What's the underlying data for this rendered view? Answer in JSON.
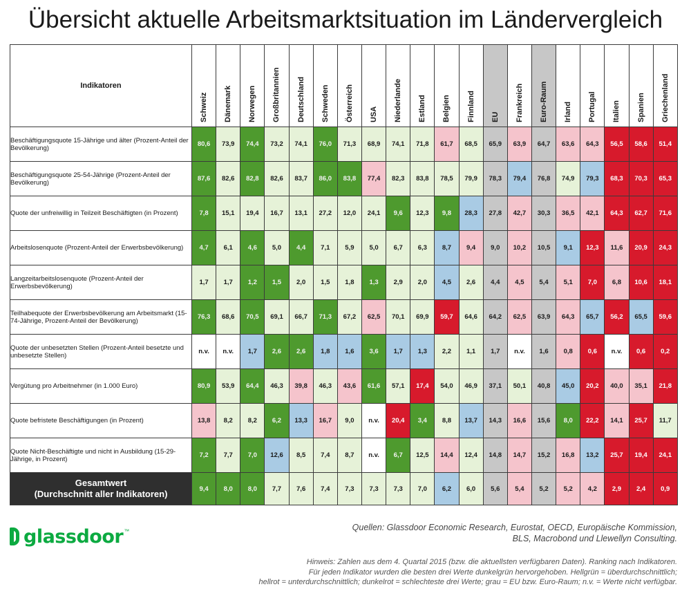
{
  "title": "Übersicht aktuelle Arbeitsmarktsituation im Ländervergleich",
  "header_label": "Indikatoren",
  "countries": [
    "Schweiz",
    "Dänemark",
    "Norwegen",
    "Großbritannien",
    "Deutschland",
    "Schweden",
    "Österreich",
    "USA",
    "Niederlande",
    "Estland",
    "Belgien",
    "Finnland",
    "EU",
    "Frankreich",
    "Euro-Raum",
    "Irland",
    "Portugal",
    "Italien",
    "Spanien",
    "Griechenland"
  ],
  "grey_columns": [
    12,
    14
  ],
  "legend_colors": {
    "dg": "#4e9a2e",
    "lg": "#e6f2d8",
    "lr": "#f5c4cc",
    "dr": "#d71a2c",
    "gr": "#c7c7c7",
    "bl": "#a9cbe4",
    "wh": "#ffffff"
  },
  "rows": [
    {
      "label": "Beschäftigungsquote 15-Jährige und älter (Prozent-Anteil der Bevölkerung)",
      "values": [
        "80,6",
        "73,9",
        "74,4",
        "73,2",
        "74,1",
        "76,0",
        "71,3",
        "68,9",
        "74,1",
        "71,8",
        "61,7",
        "68,5",
        "65,9",
        "63,9",
        "64,7",
        "63,6",
        "64,3",
        "56,5",
        "58,6",
        "51,4"
      ],
      "colors": [
        "dg",
        "lg",
        "dg",
        "lg",
        "lg",
        "dg",
        "lg",
        "lg",
        "lg",
        "lg",
        "lr",
        "lg",
        "gr",
        "lr",
        "gr",
        "lr",
        "lr",
        "dr",
        "dr",
        "dr"
      ]
    },
    {
      "label": "Beschäftigungsquote 25-54-Jährige (Prozent-Anteil der Bevölkerung)",
      "values": [
        "87,6",
        "82,6",
        "82,8",
        "82,6",
        "83,7",
        "86,0",
        "83,8",
        "77,4",
        "82,3",
        "83,8",
        "78,5",
        "79,9",
        "78,3",
        "79,4",
        "76,8",
        "74,9",
        "79,3",
        "68,3",
        "70,3",
        "65,3"
      ],
      "colors": [
        "dg",
        "lg",
        "dg",
        "lg",
        "lg",
        "dg",
        "dg",
        "lr",
        "lg",
        "lg",
        "lg",
        "lg",
        "gr",
        "bl",
        "gr",
        "lg",
        "bl",
        "dr",
        "dr",
        "dr"
      ]
    },
    {
      "label": "Quote der unfreiwillig in Teilzeit Beschäftigten (in Prozent)",
      "values": [
        "7,8",
        "15,1",
        "19,4",
        "16,7",
        "13,1",
        "27,2",
        "12,0",
        "24,1",
        "9,6",
        "12,3",
        "9,8",
        "28,3",
        "27,8",
        "42,7",
        "30,3",
        "36,5",
        "42,1",
        "64,3",
        "62,7",
        "71,6"
      ],
      "colors": [
        "dg",
        "lg",
        "lg",
        "lg",
        "lg",
        "lg",
        "lg",
        "lg",
        "dg",
        "lg",
        "dg",
        "bl",
        "gr",
        "lr",
        "gr",
        "lr",
        "lr",
        "dr",
        "dr",
        "dr"
      ]
    },
    {
      "label": "Arbeitslosenquote (Prozent-Anteil der Erwerbsbevölkerung)",
      "values": [
        "4,7",
        "6,1",
        "4,6",
        "5,0",
        "4,4",
        "7,1",
        "5,9",
        "5,0",
        "6,7",
        "6,3",
        "8,7",
        "9,4",
        "9,0",
        "10,2",
        "10,5",
        "9,1",
        "12,3",
        "11,6",
        "20,9",
        "24,3"
      ],
      "colors": [
        "dg",
        "lg",
        "dg",
        "lg",
        "dg",
        "lg",
        "lg",
        "lg",
        "lg",
        "lg",
        "bl",
        "lr",
        "gr",
        "lr",
        "gr",
        "bl",
        "dr",
        "lr",
        "dr",
        "dr"
      ]
    },
    {
      "label": "Langzeitarbeitslosenquote (Prozent-Anteil der Erwerbsbevölkerung)",
      "values": [
        "1,7",
        "1,7",
        "1,2",
        "1,5",
        "2,0",
        "1,5",
        "1,8",
        "1,3",
        "2,9",
        "2,0",
        "4,5",
        "2,6",
        "4,4",
        "4,5",
        "5,4",
        "5,1",
        "7,0",
        "6,8",
        "10,6",
        "18,1"
      ],
      "colors": [
        "lg",
        "lg",
        "dg",
        "dg",
        "lg",
        "lg",
        "lg",
        "dg",
        "lg",
        "lg",
        "bl",
        "lg",
        "gr",
        "lr",
        "gr",
        "lr",
        "dr",
        "lr",
        "dr",
        "dr"
      ]
    },
    {
      "label": "Teilhabequote der Erwerbsbevölkerung am Arbeitsmarkt (15-74-Jährige, Prozent-Anteil der Bevölkerung)",
      "values": [
        "76,3",
        "68,6",
        "70,5",
        "69,1",
        "66,7",
        "71,3",
        "67,2",
        "62,5",
        "70,1",
        "69,9",
        "59,7",
        "64,6",
        "64,2",
        "62,5",
        "63,9",
        "64,3",
        "65,7",
        "56,2",
        "65,5",
        "59,6"
      ],
      "colors": [
        "dg",
        "lg",
        "dg",
        "lg",
        "lg",
        "dg",
        "lg",
        "lr",
        "lg",
        "lg",
        "dr",
        "lg",
        "gr",
        "lr",
        "gr",
        "lr",
        "bl",
        "dr",
        "bl",
        "dr"
      ]
    },
    {
      "label": "Quote der unbesetzten Stellen (Prozent-Anteil besetzte und unbesetzte Stellen)",
      "values": [
        "n.v.",
        "n.v.",
        "1,7",
        "2,6",
        "2,6",
        "1,8",
        "1,6",
        "3,6",
        "1,7",
        "1,3",
        "2,2",
        "1,1",
        "1,7",
        "n.v.",
        "1,6",
        "0,8",
        "0,6",
        "n.v.",
        "0,6",
        "0,2"
      ],
      "colors": [
        "wh",
        "wh",
        "bl",
        "dg",
        "dg",
        "bl",
        "bl",
        "dg",
        "bl",
        "bl",
        "lg",
        "lg",
        "gr",
        "wh",
        "gr",
        "lr",
        "dr",
        "wh",
        "dr",
        "dr"
      ]
    },
    {
      "label": "Vergütung pro Arbeitnehmer (in 1.000 Euro)",
      "values": [
        "80,9",
        "53,9",
        "64,4",
        "46,3",
        "39,8",
        "46,3",
        "43,6",
        "61,6",
        "57,1",
        "17,4",
        "54,0",
        "46,9",
        "37,1",
        "50,1",
        "40,8",
        "45,0",
        "20,2",
        "40,0",
        "35,1",
        "21,8"
      ],
      "colors": [
        "dg",
        "lg",
        "dg",
        "lg",
        "lr",
        "lg",
        "lr",
        "dg",
        "lg",
        "dr",
        "lg",
        "lg",
        "gr",
        "lg",
        "gr",
        "bl",
        "dr",
        "lr",
        "lr",
        "dr"
      ]
    },
    {
      "label": "Quote befristete Beschäftigungen (in Prozent)",
      "values": [
        "13,8",
        "8,2",
        "8,2",
        "6,2",
        "13,3",
        "16,7",
        "9,0",
        "n.v.",
        "20,4",
        "3,4",
        "8,8",
        "13,7",
        "14,3",
        "16,6",
        "15,6",
        "8,0",
        "22,2",
        "14,1",
        "25,7",
        "11,7"
      ],
      "colors": [
        "lr",
        "lg",
        "lg",
        "dg",
        "bl",
        "lr",
        "lg",
        "wh",
        "dr",
        "dg",
        "lg",
        "bl",
        "gr",
        "lr",
        "gr",
        "dg",
        "dr",
        "lr",
        "dr",
        "lg"
      ]
    },
    {
      "label": "Quote Nicht-Beschäftigte und nicht in Ausbildung (15-29-Jährige, in Prozent)",
      "values": [
        "7,2",
        "7,7",
        "7,0",
        "12,6",
        "8,5",
        "7,4",
        "8,7",
        "n.v.",
        "6,7",
        "12,5",
        "14,4",
        "12,4",
        "14,8",
        "14,7",
        "15,2",
        "16,8",
        "13,2",
        "25,7",
        "19,4",
        "24,1"
      ],
      "colors": [
        "dg",
        "lg",
        "dg",
        "bl",
        "lg",
        "lg",
        "lg",
        "wh",
        "dg",
        "lg",
        "lr",
        "lg",
        "gr",
        "lr",
        "gr",
        "lr",
        "bl",
        "dr",
        "dr",
        "dr"
      ]
    }
  ],
  "total": {
    "label_line1": "Gesamtwert",
    "label_line2": "(Durchschnitt aller Indikatoren)",
    "values": [
      "9,4",
      "8,0",
      "8,0",
      "7,7",
      "7,6",
      "7,4",
      "7,3",
      "7,3",
      "7,3",
      "7,0",
      "6,2",
      "6,0",
      "5,6",
      "5,4",
      "5,2",
      "5,2",
      "4,2",
      "2,9",
      "2,4",
      "0,9"
    ],
    "colors": [
      "dg",
      "dg",
      "dg",
      "lg",
      "lg",
      "lg",
      "lg",
      "lg",
      "lg",
      "lg",
      "bl",
      "lg",
      "gr",
      "lr",
      "gr",
      "lr",
      "lr",
      "dr",
      "dr",
      "dr"
    ]
  },
  "logo": {
    "text": "glassdoor",
    "tm": "™"
  },
  "sources": {
    "line1": "Quellen: Glassdoor Economic Research, Eurostat, OECD, Europäische Kommission,",
    "line2": "BLS, Macrobond und Llewellyn Consulting."
  },
  "note": {
    "line1": "Hinweis: Zahlen aus dem 4. Quartal 2015 (bzw. die aktuellsten verfügbaren Daten). Ranking nach Indikatoren.",
    "line2": "Für jeden Indikator wurden die besten drei Werte dunkelgrün hervorgehoben. Hellgrün = überdurchschnittlich;",
    "line3": "hellrot = unterdurchschnittlich; dunkelrot = schlechteste drei Werte; grau = EU bzw. Euro-Raum; n.v. = Werte nicht verfügbar."
  }
}
